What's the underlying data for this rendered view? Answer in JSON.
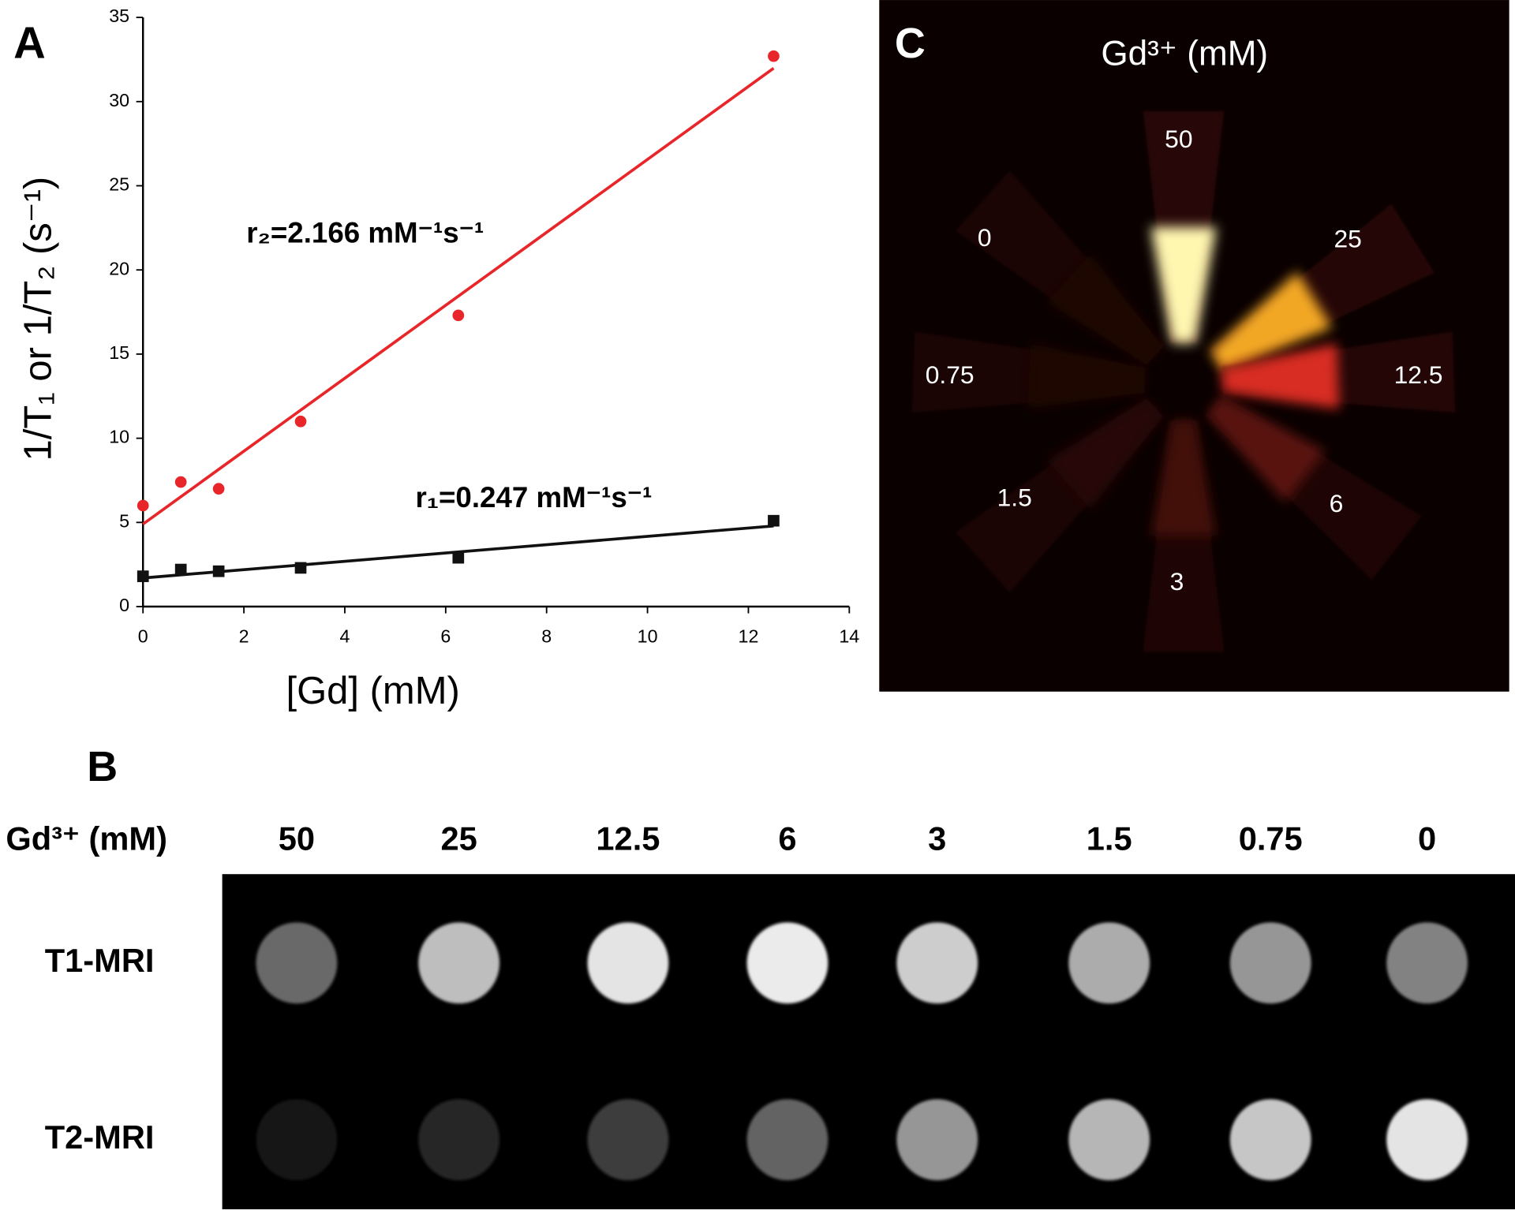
{
  "chart_data": {
    "type": "scatter",
    "panel": "A",
    "x_label": "[Gd] (mM)",
    "y_label": "1/T₁ or 1/T₂ (s⁻¹)",
    "x": [
      0,
      0.75,
      1.5,
      3.125,
      6.25,
      12.5
    ],
    "series": [
      {
        "color": "#e8262a",
        "marker": "circle",
        "values": [
          6,
          7.4,
          7,
          11,
          17.3,
          32.7
        ],
        "fit": {
          "x": [
            0,
            12.5
          ],
          "values": [
            4.9,
            31.98
          ]
        }
      },
      {
        "color": "#111111",
        "marker": "square",
        "values": [
          1.8,
          2.2,
          2.1,
          2.3,
          2.9,
          5.1
        ],
        "fit": {
          "x": [
            0,
            12.5
          ],
          "values": [
            1.7,
            4.79
          ]
        }
      }
    ],
    "annotations": [
      "r₂=2.166 mM⁻¹s⁻¹",
      "r₁=0.247 mM⁻¹s⁻¹"
    ],
    "xlim": [
      0,
      14
    ],
    "xticks": [
      0,
      2,
      4,
      6,
      8,
      10,
      12,
      14
    ],
    "ylim": [
      0,
      35
    ],
    "yticks": [
      0,
      5,
      10,
      15,
      20,
      25,
      30,
      35
    ]
  },
  "panel_b": {
    "panel": "B",
    "header": "Gd³⁺ (mM)",
    "concentrations": [
      "50",
      "25",
      "12.5",
      "6",
      "3",
      "1.5",
      "0.75",
      "0"
    ],
    "rows": [
      "T1-MRI",
      "T2-MRI"
    ]
  },
  "panel_c": {
    "panel": "C",
    "title": "Gd³⁺ (mM)",
    "labels": [
      "50",
      "25",
      "12.5",
      "6",
      "3",
      "1.5",
      "0.75",
      "0"
    ]
  }
}
